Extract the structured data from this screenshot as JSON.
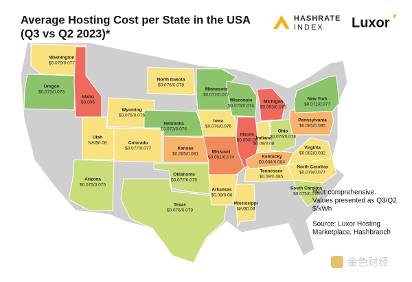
{
  "header": {
    "title_lines": [
      "Average Hosting Cost per State in the USA",
      "(Q3 vs Q2 2023)*"
    ],
    "logo_hashrate": [
      "HASHRATE",
      "INDEX"
    ],
    "logo_luxor": "Luxor"
  },
  "states": [
    {
      "name": "Washington",
      "value": "$0.079/0.077",
      "color": "#f7e27f"
    },
    {
      "name": "Oregon",
      "value": "$0.073/0.073",
      "color": "#8cc36b"
    },
    {
      "name": "Idaho",
      "value": "$0.095",
      "color": "#ee6a5c"
    },
    {
      "name": "Wyoming",
      "value": "$0.075/0.076",
      "color": "#f7e27f"
    },
    {
      "name": "Utah",
      "value": "NA/$0.08",
      "color": "#f7e27f"
    },
    {
      "name": "Colorado",
      "value": "$0.077/0.077",
      "color": "#f7e27f"
    },
    {
      "name": "Arizona",
      "value": "$0.075/0.075",
      "color": "#c9dd7a"
    },
    {
      "name": "North Dakota",
      "value": "$0.076/0.078",
      "color": "#f7e27f"
    },
    {
      "name": "Nebraska",
      "value": "$0.073/0.076",
      "color": "#8cc36b"
    },
    {
      "name": "Kansas",
      "value": "$0.085/0.081",
      "color": "#f5b36b"
    },
    {
      "name": "Oklahoma",
      "value": "$0.077/0.075",
      "color": "#c9dd7a"
    },
    {
      "name": "Texas",
      "value": "$0.076/0.079",
      "color": "#c9dd7a"
    },
    {
      "name": "Minnesota",
      "value": "$0.072/0.072",
      "color": "#8cc36b"
    },
    {
      "name": "Iowa",
      "value": "$0.076/0.076",
      "color": "#f7e27f"
    },
    {
      "name": "Missouri",
      "value": "$0.091/0.074",
      "color": "#f08a5d"
    },
    {
      "name": "Arkansas",
      "value": "$0.08/0.08",
      "color": "#f7e27f"
    },
    {
      "name": "Wisconsin",
      "value": "$0.075/0.074",
      "color": "#8cc36b"
    },
    {
      "name": "Illinois",
      "value": "$0.09/0.09",
      "color": "#ee6a5c"
    },
    {
      "name": "Mississippi",
      "value": "NA/$0.08",
      "color": "#f7e27f"
    },
    {
      "name": "Michigan",
      "value": "$0.093/0.075",
      "color": "#ee6a5c"
    },
    {
      "name": "Indiana",
      "value": "$0.08/0.08",
      "color": "#f7e27f"
    },
    {
      "name": "Ohio",
      "value": "$0.076/0.078",
      "color": "#c9dd7a"
    },
    {
      "name": "Kentucky",
      "value": "$0.084/0.084",
      "color": "#f5b36b"
    },
    {
      "name": "Tennessee",
      "value": "$0.08/0.085",
      "color": "#f7e27f"
    },
    {
      "name": "Pennsylvania",
      "value": "$0.085/0.085",
      "color": "#f5b36b"
    },
    {
      "name": "New York",
      "value": "$0.071/0.077",
      "color": "#8cc36b"
    },
    {
      "name": "Virginia",
      "value": "$0.082/0.082",
      "color": "#f7e27f"
    },
    {
      "name": "North Carolina",
      "value": "$0.079/0.077",
      "color": "#f7e27f"
    },
    {
      "name": "South Carolina",
      "value": "$0.075/0.075",
      "color": "#c9dd7a"
    }
  ],
  "note_lines": [
    "*Not comprehensive.",
    "Values presented as Q3/Q2",
    "$/kWh"
  ],
  "source_lines": [
    "Source: Luxor Hosting",
    "Marketplace, Hashbranch"
  ],
  "watermark": "金色财经"
}
